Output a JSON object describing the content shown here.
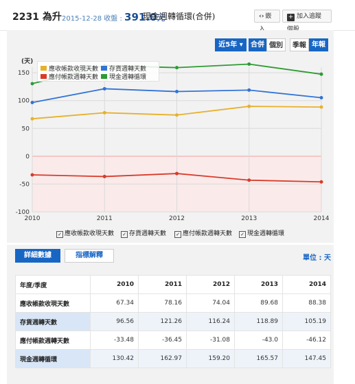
{
  "header": {
    "stock_code_name": "2231 為升",
    "price_date_label": "2015-12-28 收盤 : ",
    "price_value": "391.0",
    "price_unit": "元",
    "page_title": "現金週轉循環(合併)",
    "embed_label": "嵌入",
    "track_label": "加入追蹤個股"
  },
  "toolbar": {
    "range_label": "近5年",
    "consolidated_label": "合併",
    "individual_label": "個別",
    "quarterly_label": "季報",
    "annual_label": "年報"
  },
  "tabs": {
    "details_label": "詳細數據",
    "explain_label": "指標解釋",
    "unit_label": "單位 : 天"
  },
  "colors": {
    "receivable": "#e8b02a",
    "inventory": "#3173d6",
    "payable": "#d83b2a",
    "cash_cycle": "#2e9b33"
  },
  "chart_data": {
    "type": "line",
    "ylabel": "(天)",
    "ylim": [
      -100,
      160
    ],
    "yticks": [
      -100,
      -50,
      0,
      50,
      100,
      150
    ],
    "x": [
      2010,
      2011,
      2012,
      2013,
      2014
    ],
    "grid": true,
    "legend_placement": "top-left",
    "series": [
      {
        "name": "應收帳款收現天數",
        "values": [
          67.34,
          78.16,
          74.04,
          89.68,
          88.38
        ],
        "color": "#e8b02a"
      },
      {
        "name": "存貨週轉天數",
        "values": [
          96.56,
          121.26,
          116.24,
          118.89,
          105.19
        ],
        "color": "#3173d6"
      },
      {
        "name": "應付帳款週轉天數",
        "values": [
          -33.48,
          -36.45,
          -31.08,
          -43.0,
          -46.12
        ],
        "color": "#d83b2a"
      },
      {
        "name": "現金週轉循環",
        "values": [
          130.42,
          162.97,
          159.2,
          165.57,
          147.45
        ],
        "color": "#2e9b33"
      }
    ]
  },
  "table": {
    "header_label": "年度/季度",
    "years": [
      "2010",
      "2011",
      "2012",
      "2013",
      "2014"
    ],
    "rows": [
      {
        "name": "應收帳款收現天數",
        "values": [
          "67.34",
          "78.16",
          "74.04",
          "89.68",
          "88.38"
        ]
      },
      {
        "name": "存貨週轉天數",
        "values": [
          "96.56",
          "121.26",
          "116.24",
          "118.89",
          "105.19"
        ]
      },
      {
        "name": "應付帳款週轉天數",
        "values": [
          "-33.48",
          "-36.45",
          "-31.08",
          "-43.0",
          "-46.12"
        ]
      },
      {
        "name": "現金週轉循環",
        "values": [
          "130.42",
          "162.97",
          "159.20",
          "165.57",
          "147.45"
        ]
      }
    ]
  }
}
